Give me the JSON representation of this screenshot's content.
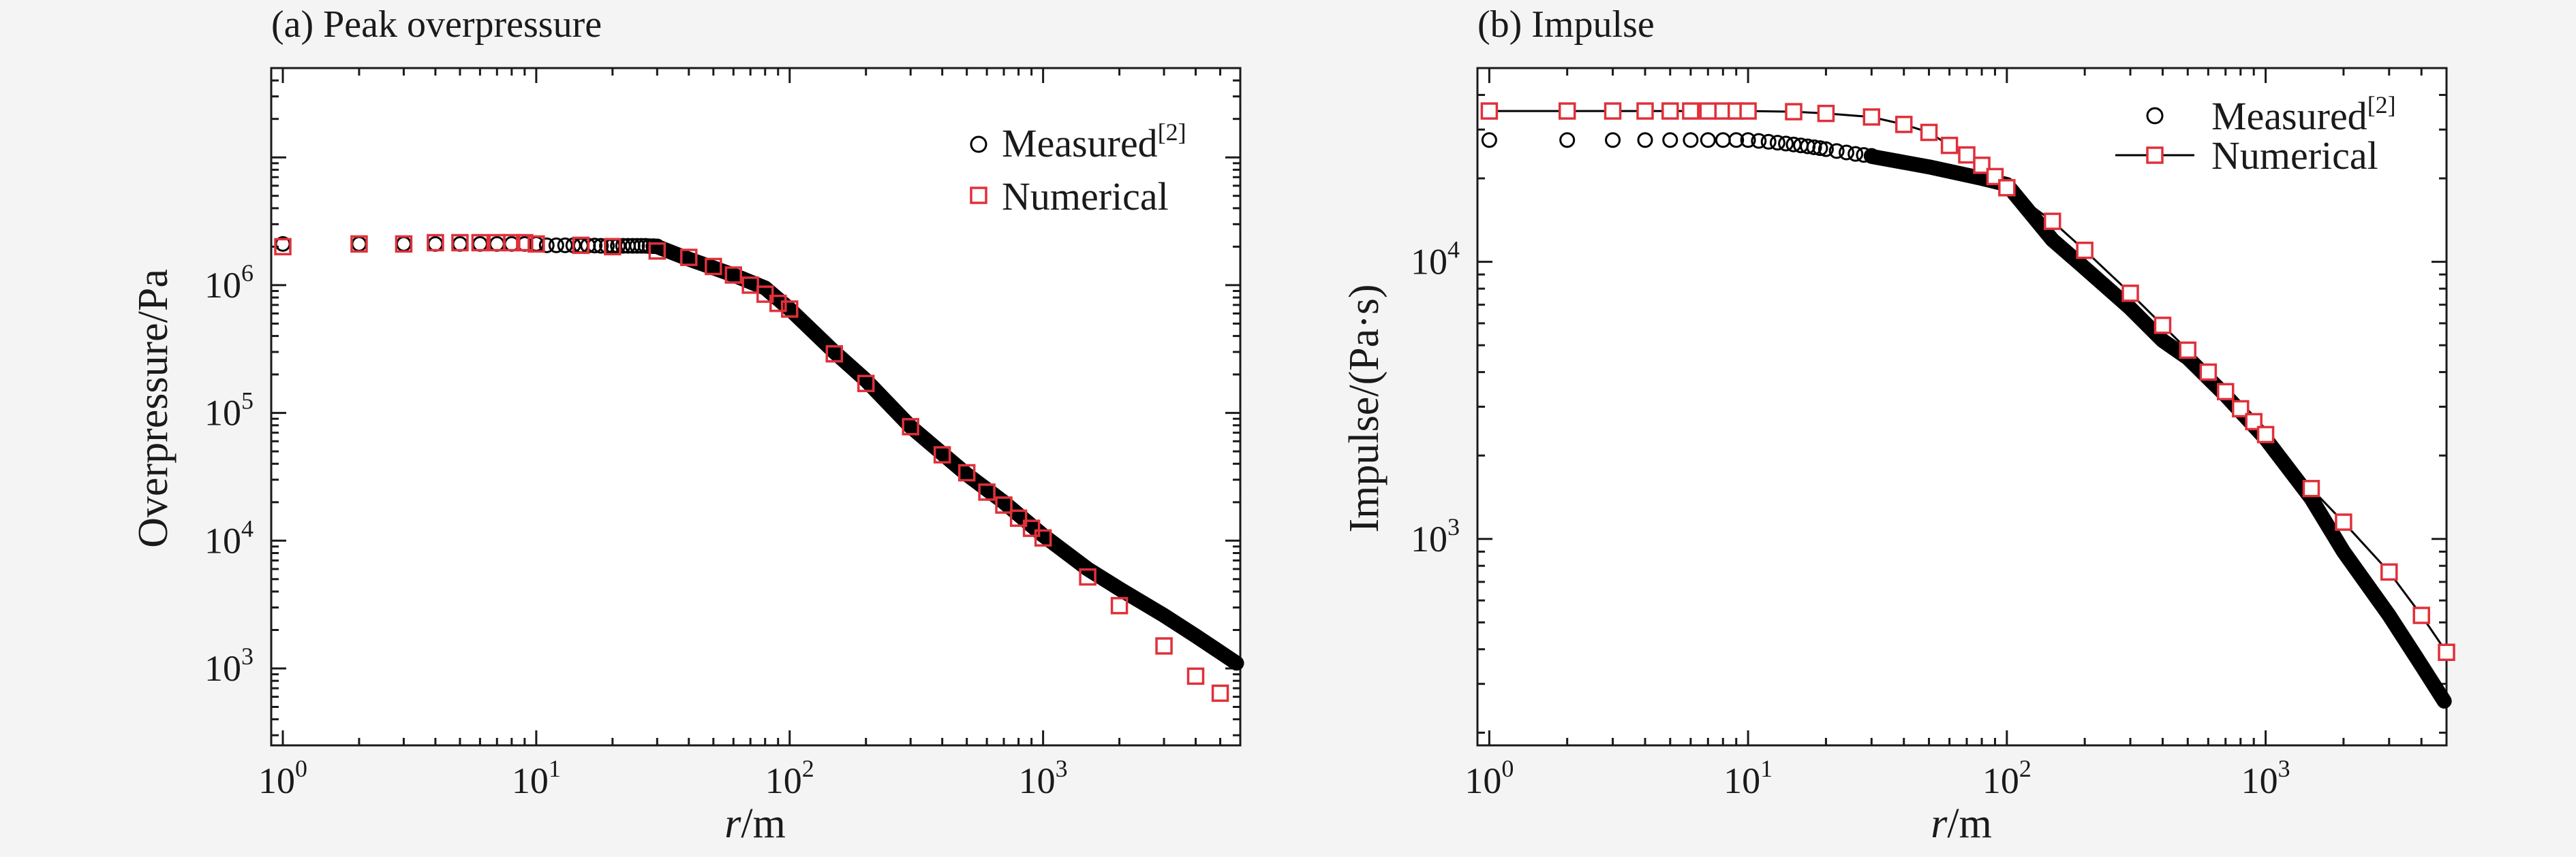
{
  "panels": [
    {
      "title": "(a) Peak overpressure",
      "xlabel_italic": "r",
      "xlabel_rest": "/m",
      "ylabel": "Overpressure/Pa",
      "legend": {
        "measured_text": "Measured",
        "measured_sup": "[2]",
        "numerical_text": "Numerical"
      }
    },
    {
      "title": "(b) Impulse",
      "xlabel_italic": "r",
      "xlabel_rest": "/m",
      "ylabel": "Impulse/(Pa·s)",
      "legend": {
        "measured_text": "Measured",
        "measured_sup": "[2]",
        "numerical_text": "Numerical"
      }
    }
  ],
  "colors": {
    "background": "#f4f4f4",
    "plot_bg": "#ffffff",
    "measured": "#000000",
    "numerical": "#e0303a",
    "numerical_line": "#000000"
  },
  "chart_data": [
    {
      "type": "scatter",
      "title": "(a) Peak overpressure",
      "xlabel": "r/m",
      "ylabel": "Overpressure/Pa",
      "xscale": "log",
      "yscale": "log",
      "xlim": [
        0.9,
        6000
      ],
      "ylim": [
        250,
        50000000
      ],
      "x_ticks": [
        {
          "base": "10",
          "exp": "0",
          "value": 1
        },
        {
          "base": "10",
          "exp": "1",
          "value": 10
        },
        {
          "base": "10",
          "exp": "2",
          "value": 100
        },
        {
          "base": "10",
          "exp": "3",
          "value": 1000
        }
      ],
      "y_ticks": [
        {
          "base": "10",
          "exp": "3",
          "value": 1000
        },
        {
          "base": "10",
          "exp": "4",
          "value": 10000
        },
        {
          "base": "10",
          "exp": "5",
          "value": 100000
        },
        {
          "base": "10",
          "exp": "6",
          "value": 1000000
        }
      ],
      "legend_position": "top-right",
      "grid": false,
      "series": [
        {
          "name": "Measured[2]",
          "marker": "circle",
          "line": false,
          "x": [
            1,
            2,
            3,
            4,
            5,
            6,
            7,
            8,
            9,
            10,
            11,
            12,
            13,
            14,
            15,
            16,
            17,
            18,
            19,
            20,
            21,
            22,
            23,
            24,
            25,
            26,
            27,
            28,
            29,
            30
          ],
          "y": [
            2100000,
            2100000,
            2100000,
            2100000,
            2100000,
            2100000,
            2100000,
            2100000,
            2100000,
            2100000,
            2050000,
            2050000,
            2050000,
            2050000,
            2040000,
            2040000,
            2040000,
            2030000,
            2030000,
            2030000,
            2030000,
            2030000,
            2030000,
            2030000,
            2030000,
            2030000,
            2030000,
            2020000,
            2020000,
            2010000
          ],
          "dense_tail": {
            "x": [
              30,
              40,
              60,
              80,
              100,
              150,
              200,
              300,
              500,
              700,
              1000,
              1500,
              2000,
              3000,
              4000,
              5800
            ],
            "y": [
              2000000,
              1600000,
              1200000,
              950000,
              650000,
              300000,
              180000,
              78000,
              33000,
              20000,
              11000,
              6000,
              4200,
              2600,
              1800,
              1100
            ]
          }
        },
        {
          "name": "Numerical",
          "marker": "square",
          "line": false,
          "x": [
            1,
            2,
            3,
            4,
            5,
            6,
            7,
            8,
            9,
            10,
            15,
            20,
            30,
            40,
            50,
            60,
            70,
            80,
            90,
            100,
            150,
            200,
            300,
            400,
            500,
            600,
            700,
            800,
            900,
            1000,
            1500,
            2000,
            3000,
            4000,
            5000
          ],
          "y": [
            2000000,
            2100000,
            2100000,
            2150000,
            2150000,
            2150000,
            2150000,
            2150000,
            2150000,
            2100000,
            2050000,
            2000000,
            1850000,
            1650000,
            1400000,
            1200000,
            1000000,
            850000,
            720000,
            650000,
            290000,
            170000,
            78000,
            47000,
            34000,
            24000,
            19000,
            15000,
            12500,
            10500,
            5200,
            3100,
            1500,
            870,
            640
          ]
        }
      ]
    },
    {
      "type": "scatter",
      "title": "(b) Impulse",
      "xlabel": "r/m",
      "ylabel": "Impulse/(Pa·s)",
      "xscale": "log",
      "yscale": "log",
      "xlim": [
        0.9,
        5000
      ],
      "ylim": [
        180,
        50000
      ],
      "x_ticks": [
        {
          "base": "10",
          "exp": "0",
          "value": 1
        },
        {
          "base": "10",
          "exp": "1",
          "value": 10
        },
        {
          "base": "10",
          "exp": "2",
          "value": 100
        },
        {
          "base": "10",
          "exp": "3",
          "value": 1000
        }
      ],
      "y_ticks": [
        {
          "base": "10",
          "exp": "3",
          "value": 1000
        },
        {
          "base": "10",
          "exp": "4",
          "value": 10000
        }
      ],
      "legend_position": "top-right",
      "grid": false,
      "series": [
        {
          "name": "Measured[2]",
          "marker": "circle",
          "line": false,
          "x": [
            1,
            2,
            3,
            4,
            5,
            6,
            7,
            8,
            9,
            10,
            11,
            12,
            13,
            14,
            15,
            16,
            17,
            18,
            19,
            20,
            22,
            24,
            26,
            28,
            30
          ],
          "y": [
            27500,
            27500,
            27500,
            27500,
            27500,
            27500,
            27500,
            27500,
            27500,
            27500,
            27300,
            27100,
            26900,
            26700,
            26500,
            26300,
            26100,
            25900,
            25700,
            25500,
            25100,
            24800,
            24500,
            24300,
            24100
          ],
          "dense_tail": {
            "x": [
              30,
              50,
              80,
              100,
              150,
              200,
              300,
              400,
              500,
              700,
              1000,
              1500,
              2000,
              3000,
              4000,
              4900
            ],
            "y": [
              24000,
              22000,
              20000,
              19000,
              12000,
              9500,
              6800,
              5200,
              4500,
              3300,
              2300,
              1400,
              900,
              530,
              350,
              260
            ]
          }
        },
        {
          "name": "Numerical",
          "marker": "square",
          "line": true,
          "x": [
            1,
            2,
            3,
            4,
            5,
            6,
            7,
            8,
            9,
            10,
            15,
            20,
            30,
            40,
            50,
            60,
            70,
            80,
            90,
            100,
            150,
            200,
            300,
            400,
            500,
            600,
            700,
            800,
            900,
            1000,
            1500,
            2000,
            3000,
            4000,
            5000
          ],
          "y": [
            35000,
            35000,
            35000,
            35000,
            35000,
            35000,
            35000,
            35000,
            35000,
            35000,
            34800,
            34300,
            33300,
            31300,
            29300,
            26300,
            24300,
            22300,
            20300,
            18500,
            14000,
            11000,
            7700,
            5900,
            4800,
            4000,
            3400,
            2950,
            2650,
            2380,
            1520,
            1150,
            760,
            530,
            390
          ]
        }
      ]
    }
  ]
}
